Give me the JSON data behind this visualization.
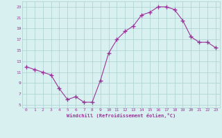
{
  "x": [
    0,
    1,
    2,
    3,
    4,
    5,
    6,
    7,
    8,
    9,
    10,
    11,
    12,
    13,
    14,
    15,
    16,
    17,
    18,
    19,
    20,
    21,
    22,
    23
  ],
  "y": [
    12.0,
    11.5,
    11.0,
    10.5,
    8.0,
    6.0,
    6.5,
    5.5,
    5.5,
    9.5,
    14.5,
    17.0,
    18.5,
    19.5,
    21.5,
    22.0,
    23.0,
    23.0,
    22.5,
    20.5,
    17.5,
    16.5,
    16.5,
    15.5
  ],
  "line_color": "#993399",
  "marker": "+",
  "marker_size": 4,
  "bg_color": "#d9f0f0",
  "grid_color": "#aacfcf",
  "tick_color": "#993399",
  "label_color": "#993399",
  "xlabel": "Windchill (Refroidissement éolien,°C)",
  "xlim": [
    -0.5,
    23.5
  ],
  "ylim": [
    4.5,
    24.0
  ],
  "yticks": [
    5,
    7,
    9,
    11,
    13,
    15,
    17,
    19,
    21,
    23
  ],
  "xticks": [
    0,
    1,
    2,
    3,
    4,
    5,
    6,
    7,
    8,
    9,
    10,
    11,
    12,
    13,
    14,
    15,
    16,
    17,
    18,
    19,
    20,
    21,
    22,
    23
  ]
}
